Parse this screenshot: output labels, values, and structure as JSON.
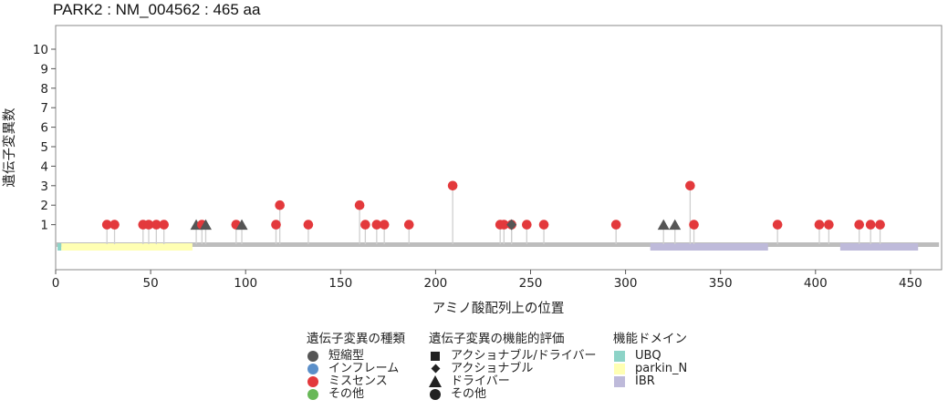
{
  "chart_data": {
    "type": "lollipop",
    "title": "PARK2 : NM_004562 : 465 aa",
    "xlabel": "アミノ酸配列上の位置",
    "ylabel": "遺伝子変異数",
    "xlim": [
      0,
      465
    ],
    "ylim": [
      -1,
      11
    ],
    "x_ticks": [
      0,
      50,
      100,
      150,
      200,
      250,
      300,
      350,
      400,
      450
    ],
    "y_ticks": [
      1,
      2,
      3,
      4,
      5,
      6,
      7,
      8,
      9,
      10
    ],
    "protein_length": 465,
    "mutation_type_colors": {
      "短縮型": "#555555",
      "インフレーム": "#5b8fc9",
      "ミスセンス": "#e3393c",
      "その他": "#68b858"
    },
    "mutations": [
      {
        "pos": 27,
        "count": 1,
        "type": "ミスセンス",
        "marker": "その他"
      },
      {
        "pos": 31,
        "count": 1,
        "type": "ミスセンス",
        "marker": "その他"
      },
      {
        "pos": 46,
        "count": 1,
        "type": "ミスセンス",
        "marker": "その他"
      },
      {
        "pos": 49,
        "count": 1,
        "type": "ミスセンス",
        "marker": "その他"
      },
      {
        "pos": 53,
        "count": 1,
        "type": "ミスセンス",
        "marker": "その他"
      },
      {
        "pos": 57,
        "count": 1,
        "type": "ミスセンス",
        "marker": "その他"
      },
      {
        "pos": 74,
        "count": 1,
        "type": "短縮型",
        "marker": "ドライバー"
      },
      {
        "pos": 77,
        "count": 1,
        "type": "ミスセンス",
        "marker": "その他"
      },
      {
        "pos": 79,
        "count": 1,
        "type": "短縮型",
        "marker": "ドライバー"
      },
      {
        "pos": 95,
        "count": 1,
        "type": "ミスセンス",
        "marker": "その他"
      },
      {
        "pos": 98,
        "count": 1,
        "type": "短縮型",
        "marker": "ドライバー"
      },
      {
        "pos": 116,
        "count": 1,
        "type": "ミスセンス",
        "marker": "その他"
      },
      {
        "pos": 118,
        "count": 2,
        "type": "ミスセンス",
        "marker": "その他"
      },
      {
        "pos": 133,
        "count": 1,
        "type": "ミスセンス",
        "marker": "その他"
      },
      {
        "pos": 160,
        "count": 2,
        "type": "ミスセンス",
        "marker": "その他"
      },
      {
        "pos": 163,
        "count": 1,
        "type": "ミスセンス",
        "marker": "その他"
      },
      {
        "pos": 169,
        "count": 1,
        "type": "ミスセンス",
        "marker": "その他"
      },
      {
        "pos": 173,
        "count": 1,
        "type": "ミスセンス",
        "marker": "その他"
      },
      {
        "pos": 186,
        "count": 1,
        "type": "ミスセンス",
        "marker": "その他"
      },
      {
        "pos": 209,
        "count": 3,
        "type": "ミスセンス",
        "marker": "その他"
      },
      {
        "pos": 234,
        "count": 1,
        "type": "ミスセンス",
        "marker": "その他"
      },
      {
        "pos": 236,
        "count": 1,
        "type": "ミスセンス",
        "marker": "その他"
      },
      {
        "pos": 240,
        "count": 1,
        "type": "ミスセンス",
        "marker": "その他"
      },
      {
        "pos": 240,
        "count": 1,
        "type": "短縮型",
        "marker": "アクショナブル"
      },
      {
        "pos": 248,
        "count": 1,
        "type": "ミスセンス",
        "marker": "その他"
      },
      {
        "pos": 257,
        "count": 1,
        "type": "ミスセンス",
        "marker": "その他"
      },
      {
        "pos": 295,
        "count": 1,
        "type": "ミスセンス",
        "marker": "その他"
      },
      {
        "pos": 320,
        "count": 1,
        "type": "短縮型",
        "marker": "ドライバー"
      },
      {
        "pos": 326,
        "count": 1,
        "type": "短縮型",
        "marker": "ドライバー"
      },
      {
        "pos": 334,
        "count": 3,
        "type": "ミスセンス",
        "marker": "その他"
      },
      {
        "pos": 336,
        "count": 1,
        "type": "ミスセンス",
        "marker": "その他"
      },
      {
        "pos": 380,
        "count": 1,
        "type": "ミスセンス",
        "marker": "その他"
      },
      {
        "pos": 402,
        "count": 1,
        "type": "ミスセンス",
        "marker": "その他"
      },
      {
        "pos": 407,
        "count": 1,
        "type": "ミスセンス",
        "marker": "その他"
      },
      {
        "pos": 423,
        "count": 1,
        "type": "ミスセンス",
        "marker": "その他"
      },
      {
        "pos": 429,
        "count": 1,
        "type": "ミスセンス",
        "marker": "その他"
      },
      {
        "pos": 434,
        "count": 1,
        "type": "ミスセンス",
        "marker": "その他"
      }
    ],
    "domains": [
      {
        "name": "UBQ",
        "start": 1,
        "end": 3,
        "color": "#8dd3c7"
      },
      {
        "name": "parkin_N",
        "start": 3,
        "end": 72,
        "color": "#ffffb3"
      },
      {
        "name": "IBR",
        "start": 313,
        "end": 375,
        "color": "#bebada"
      },
      {
        "name": "IBR",
        "start": 413,
        "end": 454,
        "color": "#bebada"
      }
    ],
    "legend": {
      "type_title": "遺伝子変異の種類",
      "types": [
        {
          "label": "短縮型",
          "color": "#555555"
        },
        {
          "label": "インフレーム",
          "color": "#5b8fc9"
        },
        {
          "label": "ミスセンス",
          "color": "#e3393c"
        },
        {
          "label": "その他",
          "color": "#68b858"
        }
      ],
      "eval_title": "遺伝子変異の機能的評価",
      "evals": [
        {
          "label": "アクショナブル/ドライバー",
          "shape": "square"
        },
        {
          "label": "アクショナブル",
          "shape": "diamond"
        },
        {
          "label": "ドライバー",
          "shape": "triangle"
        },
        {
          "label": "その他",
          "shape": "circle"
        }
      ],
      "domain_title": "機能ドメイン",
      "domains": [
        {
          "label": "UBQ",
          "color": "#8dd3c7"
        },
        {
          "label": "parkin_N",
          "color": "#ffffb3"
        },
        {
          "label": "IBR",
          "color": "#bebada"
        }
      ]
    }
  }
}
